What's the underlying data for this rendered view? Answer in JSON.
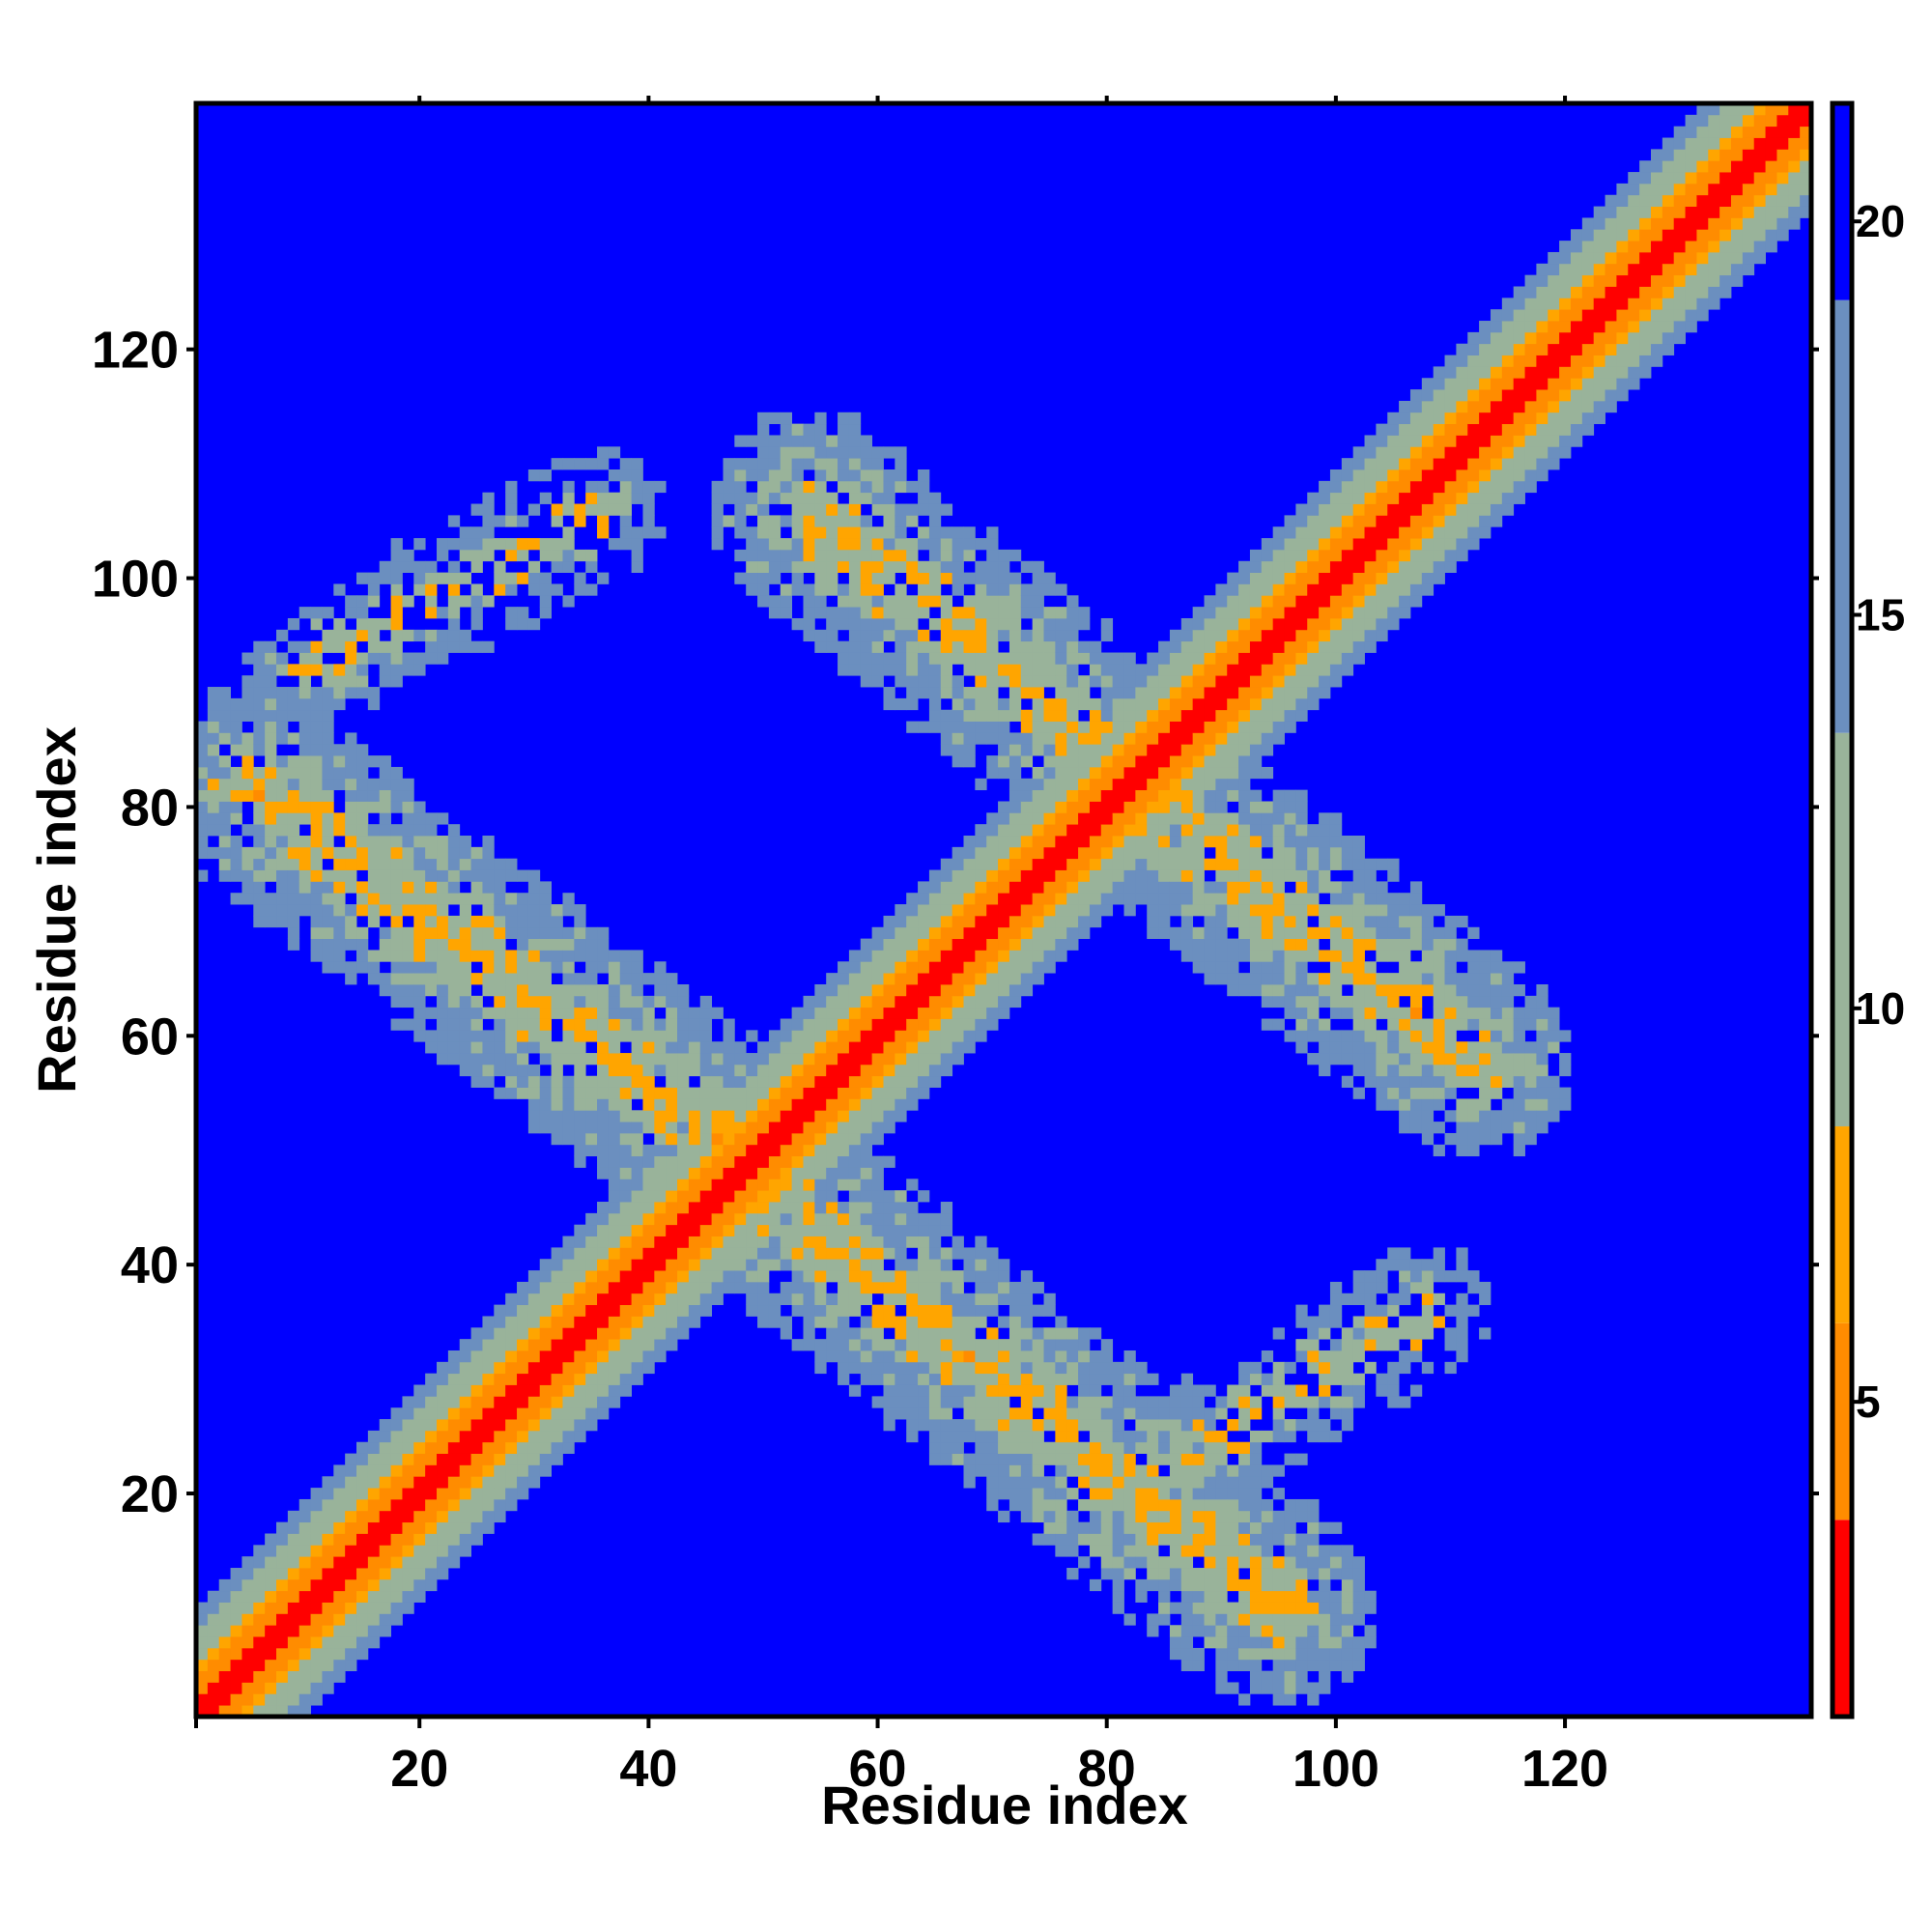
{
  "chart_data": {
    "type": "heatmap",
    "title": "",
    "xlabel": "Residue index",
    "ylabel": "Residue index",
    "xlim": [
      1,
      141
    ],
    "ylim": [
      1,
      141
    ],
    "x_ticks": [
      20,
      40,
      60,
      80,
      100,
      120
    ],
    "y_ticks": [
      20,
      40,
      60,
      80,
      100,
      120
    ],
    "colorbar": {
      "ticks": [
        5,
        10,
        15,
        20
      ],
      "range": [
        1,
        21.5
      ],
      "colors": {
        "red": "#ff0000",
        "orange": "#ff8c00",
        "light_orange": "#ffa500",
        "sage": "#99b39a",
        "gray_blue": "#6b8fbf",
        "blue": "#0000ff"
      }
    },
    "matrix_description": "symmetric residue distance map; values near diagonal are small (red), large distances saturate at 21.5 (blue)",
    "contact_arms": [
      {
        "from": [
          5,
          82
        ],
        "to": [
          50,
          48
        ],
        "width": 9
      },
      {
        "from": [
          48,
          48
        ],
        "to": [
          95,
          10
        ],
        "width": 9
      },
      {
        "from": [
          54,
          106
        ],
        "to": [
          83,
          82
        ],
        "width": 9
      },
      {
        "from": [
          82,
          82
        ],
        "to": [
          112,
          58
        ],
        "width": 9
      },
      {
        "from": [
          10,
          92
        ],
        "to": [
          36,
          106
        ],
        "width": 6
      },
      {
        "from": [
          85,
          22
        ],
        "to": [
          108,
          36
        ],
        "width": 6
      }
    ]
  }
}
